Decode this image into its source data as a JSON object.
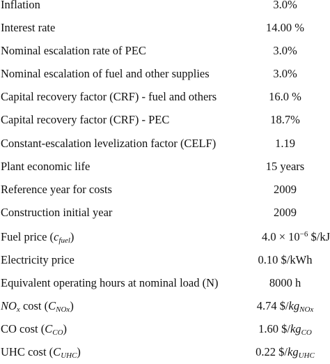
{
  "rows": [
    {
      "parameter": "Inflation",
      "value": "3.0%"
    },
    {
      "parameter": "Interest rate",
      "value": "14.00 %"
    },
    {
      "parameter": "Nominal escalation rate of PEC",
      "value": "3.0%"
    },
    {
      "parameter": "Nominal escalation of fuel and other supplies",
      "value": "3.0%"
    },
    {
      "parameter": "Capital recovery factor (CRF) - fuel and others",
      "value": "16.0 %"
    },
    {
      "parameter": "Capital recovery factor (CRF) - PEC",
      "value": "18.7%"
    },
    {
      "parameter": "Constant-escalation levelization factor (CELF)",
      "value": "1.19"
    },
    {
      "parameter": "Plant economic life",
      "value": "15 years"
    },
    {
      "parameter": "Reference year for costs",
      "value": "2009"
    },
    {
      "parameter": "Construction initial year",
      "value": "2009"
    },
    {
      "parameter": "Fuel price (",
      "parameter_symbol": "c",
      "parameter_sub": "fuel",
      "parameter_close": ")",
      "value_prefix": "4.0 × 10",
      "value_exp": "−6",
      "value_unit": " $/kJ"
    },
    {
      "parameter": "Electricity price",
      "value": "0.10 $/kWh"
    },
    {
      "parameter": "Equivalent operating hours at nominal load (N)",
      "value": "8000 h"
    },
    {
      "parameter_symbol": "NO",
      "parameter_sub": "x",
      "parameter": " cost (",
      "parameter_symbol2": "C",
      "parameter_sub2": "NOx",
      "parameter_close": ")",
      "value_prefix": "4.74 $/",
      "value_unit": "kg",
      "value_sub": "NOx"
    },
    {
      "parameter": "CO cost (",
      "parameter_symbol": "C",
      "parameter_sub": "CO",
      "parameter_close": ")",
      "value_prefix": "1.60 $/",
      "value_unit": "kg",
      "value_sub": "CO"
    },
    {
      "parameter": "UHC cost (",
      "parameter_symbol": "C",
      "parameter_sub": "UHC",
      "parameter_close": ")",
      "value_prefix": "0.22 $/",
      "value_unit": "kg",
      "value_sub": "UHC"
    }
  ]
}
